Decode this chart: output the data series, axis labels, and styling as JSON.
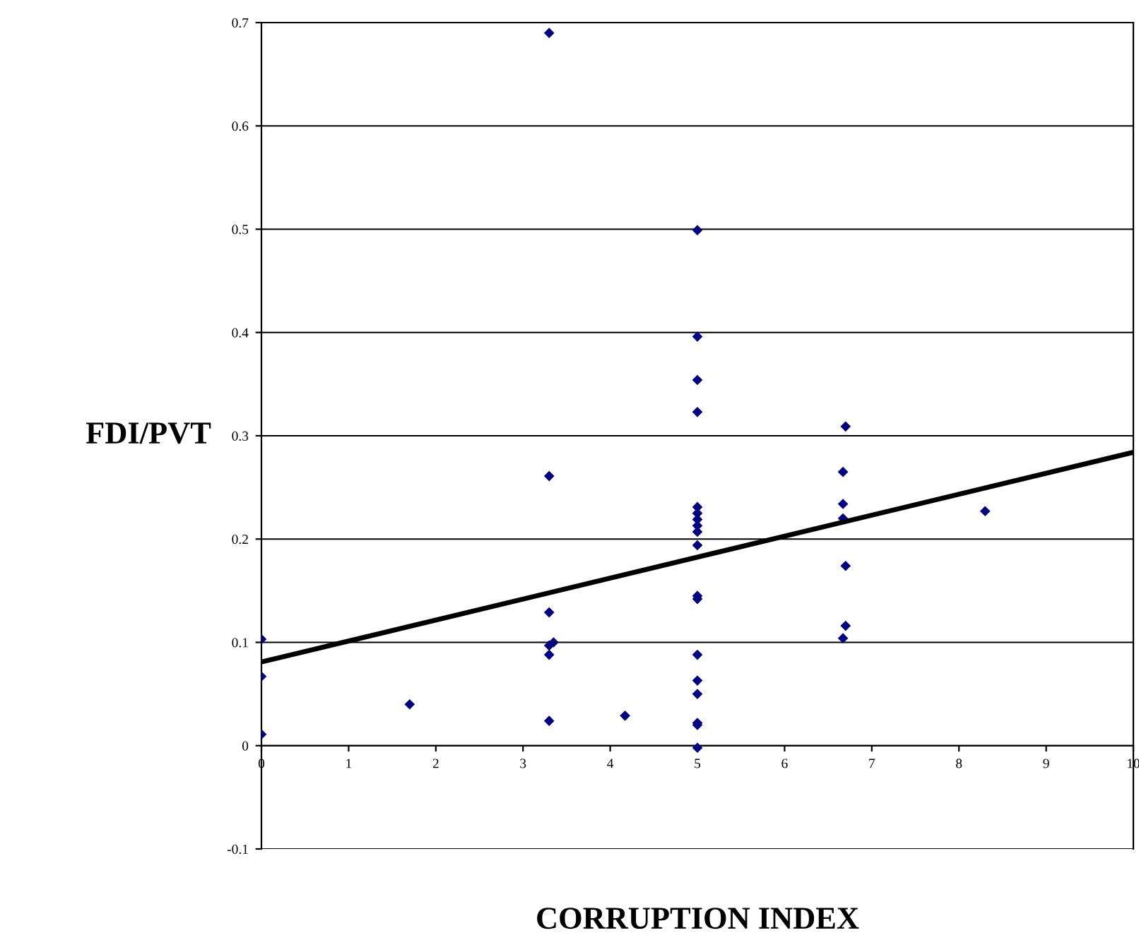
{
  "chart_data": {
    "type": "scatter",
    "xlabel": "CORRUPTION INDEX",
    "ylabel": "FDI/PVT",
    "series": [
      {
        "color": "#000080",
        "marker": "diamond",
        "x": [
          0,
          0,
          0,
          1.7,
          3.3,
          3.3,
          3.3,
          3.3,
          3.35,
          3.3,
          3.3,
          4.17,
          5,
          5,
          5,
          5,
          5,
          5,
          5,
          5,
          5,
          5,
          5,
          5,
          5,
          5,
          5,
          5,
          5,
          5,
          6.7,
          6.67,
          6.67,
          6.67,
          6.7,
          6.7,
          6.67,
          8.3
        ],
        "values": [
          0.103,
          0.067,
          0.011,
          0.04,
          0.69,
          0.261,
          0.129,
          0.097,
          0.1,
          0.088,
          0.024,
          0.029,
          0.499,
          0.396,
          0.354,
          0.323,
          0.231,
          0.225,
          0.219,
          0.213,
          0.207,
          0.194,
          0.145,
          0.142,
          0.088,
          0.063,
          0.05,
          0.022,
          0.02,
          -0.002,
          0.309,
          0.265,
          0.234,
          0.22,
          0.174,
          0.116,
          0.104,
          0.227
        ]
      },
      {
        "type": "line",
        "color": "#000000",
        "marker": "none",
        "x": [
          0,
          10
        ],
        "values": [
          0.081,
          0.284
        ]
      }
    ],
    "xlim": [
      0,
      10
    ],
    "xticks": [
      0,
      1,
      2,
      3,
      4,
      5,
      6,
      7,
      8,
      9,
      10
    ],
    "ylim": [
      -0.1,
      0.7
    ],
    "yticks": [
      -0.1,
      0,
      0.1,
      0.2,
      0.3,
      0.4,
      0.5,
      0.6,
      0.7
    ],
    "grid": "y",
    "legend": false
  }
}
